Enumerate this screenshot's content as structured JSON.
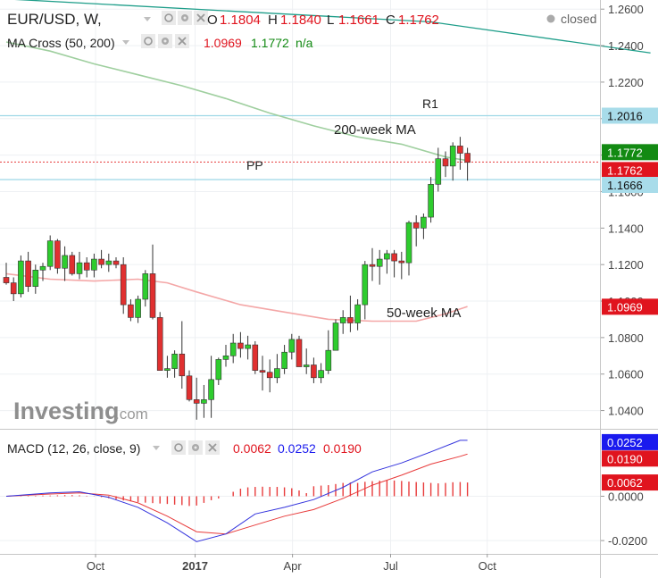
{
  "header": {
    "symbol": "EUR/USD, W,",
    "o_label": "O",
    "o_value": "1.1804",
    "h_label": "H",
    "h_value": "1.1840",
    "l_label": "L",
    "l_value": "1.1661",
    "c_label": "C",
    "c_value": "1.1762",
    "status": "closed"
  },
  "ma_legend": {
    "label": "MA Cross (50, 200)",
    "v1": "1.0969",
    "v2": "1.1772",
    "v3": "n/a"
  },
  "macd_legend": {
    "label": "MACD (12, 26, close, 9)",
    "v1": "0.0062",
    "v2": "0.0252",
    "v3": "0.0190"
  },
  "watermark": {
    "brand": "Investing",
    "suffix": ".com"
  },
  "annotations": {
    "r1": "R1",
    "ma200": "200-week MA",
    "pp": "PP",
    "ma50": "50-week MA"
  },
  "colors": {
    "up": "#2ecc2e",
    "down": "#e03030",
    "ma50": "#f4a7a7",
    "ma200": "#9fcf9f",
    "trend": "#1f9e8a",
    "level": "#9ed8e6",
    "macd": "#3333dd",
    "signal": "#e83b3b",
    "green_badge": "#138a13",
    "red_badge": "#e0141e",
    "blue_badge": "#1a1aee",
    "cyan_badge": "#a8dcea"
  },
  "price_axis": {
    "ticks": [
      "1.2600",
      "1.2400",
      "1.2200",
      "1.2000",
      "1.1800",
      "1.1600",
      "1.1400",
      "1.1200",
      "1.1000",
      "1.0800",
      "1.0600",
      "1.0400"
    ],
    "badges": [
      {
        "value": 1.2016,
        "label": "1.2016",
        "style": "cyan"
      },
      {
        "value": 1.1772,
        "label": "1.1772",
        "style": "green"
      },
      {
        "value": 1.1762,
        "label": "1.1762",
        "style": "red"
      },
      {
        "value": 1.1666,
        "label": "1.1666",
        "style": "cyan"
      },
      {
        "value": 1.0969,
        "label": "1.0969",
        "style": "red"
      }
    ]
  },
  "macd_axis": {
    "ticks": [
      "0.0000",
      "-0.0200"
    ],
    "badges": [
      {
        "value": 0.0252,
        "label": "0.0252",
        "style": "blue"
      },
      {
        "value": 0.019,
        "label": "0.0190",
        "style": "red"
      },
      {
        "value": 0.0062,
        "label": "0.0062",
        "style": "red"
      }
    ]
  },
  "time_axis": {
    "labels": [
      "l",
      "Oct",
      "2017",
      "Apr",
      "Jul",
      "Oct"
    ]
  },
  "chart_data": {
    "type": "candlestick",
    "interval": "weekly",
    "x_start_week": 0,
    "price_ylim": [
      1.03,
      1.265
    ],
    "candles": [
      [
        1.113,
        1.121,
        1.109,
        1.11
      ],
      [
        1.11,
        1.113,
        1.1,
        1.104
      ],
      [
        1.104,
        1.125,
        1.102,
        1.122
      ],
      [
        1.122,
        1.127,
        1.105,
        1.108
      ],
      [
        1.108,
        1.12,
        1.104,
        1.117
      ],
      [
        1.117,
        1.121,
        1.111,
        1.119
      ],
      [
        1.119,
        1.136,
        1.117,
        1.133
      ],
      [
        1.133,
        1.134,
        1.115,
        1.118
      ],
      [
        1.118,
        1.13,
        1.111,
        1.125
      ],
      [
        1.125,
        1.127,
        1.114,
        1.115
      ],
      [
        1.115,
        1.127,
        1.112,
        1.121
      ],
      [
        1.121,
        1.124,
        1.113,
        1.117
      ],
      [
        1.117,
        1.126,
        1.113,
        1.123
      ],
      [
        1.123,
        1.128,
        1.118,
        1.12
      ],
      [
        1.12,
        1.126,
        1.116,
        1.122
      ],
      [
        1.122,
        1.124,
        1.118,
        1.12
      ],
      [
        1.12,
        1.124,
        1.093,
        1.098
      ],
      [
        1.098,
        1.101,
        1.089,
        1.091
      ],
      [
        1.091,
        1.103,
        1.088,
        1.101
      ],
      [
        1.101,
        1.117,
        1.097,
        1.115
      ],
      [
        1.115,
        1.131,
        1.09,
        1.091
      ],
      [
        1.091,
        1.094,
        1.062,
        1.062
      ],
      [
        1.062,
        1.07,
        1.058,
        1.063
      ],
      [
        1.063,
        1.073,
        1.058,
        1.071
      ],
      [
        1.071,
        1.089,
        1.052,
        1.059
      ],
      [
        1.059,
        1.062,
        1.045,
        1.046
      ],
      [
        1.046,
        1.058,
        1.035,
        1.044
      ],
      [
        1.044,
        1.054,
        1.036,
        1.046
      ],
      [
        1.046,
        1.07,
        1.036,
        1.057
      ],
      [
        1.057,
        1.069,
        1.054,
        1.068
      ],
      [
        1.068,
        1.076,
        1.064,
        1.07
      ],
      [
        1.07,
        1.082,
        1.066,
        1.077
      ],
      [
        1.077,
        1.083,
        1.069,
        1.074
      ],
      [
        1.074,
        1.081,
        1.068,
        1.076
      ],
      [
        1.076,
        1.078,
        1.06,
        1.062
      ],
      [
        1.062,
        1.07,
        1.051,
        1.061
      ],
      [
        1.061,
        1.068,
        1.05,
        1.058
      ],
      [
        1.058,
        1.071,
        1.055,
        1.063
      ],
      [
        1.063,
        1.076,
        1.06,
        1.072
      ],
      [
        1.072,
        1.082,
        1.068,
        1.079
      ],
      [
        1.079,
        1.081,
        1.064,
        1.064
      ],
      [
        1.064,
        1.074,
        1.06,
        1.065
      ],
      [
        1.065,
        1.069,
        1.055,
        1.058
      ],
      [
        1.058,
        1.066,
        1.055,
        1.062
      ],
      [
        1.062,
        1.084,
        1.06,
        1.073
      ],
      [
        1.073,
        1.09,
        1.073,
        1.088
      ],
      [
        1.088,
        1.095,
        1.082,
        1.091
      ],
      [
        1.091,
        1.103,
        1.083,
        1.088
      ],
      [
        1.088,
        1.101,
        1.084,
        1.098
      ],
      [
        1.098,
        1.122,
        1.09,
        1.12
      ],
      [
        1.12,
        1.129,
        1.111,
        1.119
      ],
      [
        1.119,
        1.128,
        1.109,
        1.123
      ],
      [
        1.123,
        1.128,
        1.115,
        1.126
      ],
      [
        1.126,
        1.128,
        1.113,
        1.122
      ],
      [
        1.122,
        1.127,
        1.112,
        1.121
      ],
      [
        1.121,
        1.144,
        1.114,
        1.143
      ],
      [
        1.143,
        1.147,
        1.13,
        1.14
      ],
      [
        1.14,
        1.148,
        1.134,
        1.146
      ],
      [
        1.146,
        1.168,
        1.143,
        1.164
      ],
      [
        1.164,
        1.184,
        1.16,
        1.178
      ],
      [
        1.178,
        1.182,
        1.168,
        1.174
      ],
      [
        1.174,
        1.187,
        1.166,
        1.185
      ],
      [
        1.185,
        1.19,
        1.172,
        1.181
      ],
      [
        1.181,
        1.184,
        1.166,
        1.176
      ]
    ],
    "ma50": [
      [
        0,
        1.115
      ],
      [
        6,
        1.112
      ],
      [
        12,
        1.111
      ],
      [
        18,
        1.112
      ],
      [
        22,
        1.11
      ],
      [
        26,
        1.105
      ],
      [
        32,
        1.098
      ],
      [
        38,
        1.094
      ],
      [
        44,
        1.09
      ],
      [
        50,
        1.089
      ],
      [
        56,
        1.089
      ],
      [
        60,
        1.093
      ],
      [
        63,
        1.097
      ]
    ],
    "ma200": [
      [
        0,
        1.242
      ],
      [
        6,
        1.237
      ],
      [
        12,
        1.23
      ],
      [
        18,
        1.224
      ],
      [
        24,
        1.218
      ],
      [
        30,
        1.211
      ],
      [
        36,
        1.203
      ],
      [
        42,
        1.196
      ],
      [
        48,
        1.19
      ],
      [
        54,
        1.186
      ],
      [
        60,
        1.179
      ],
      [
        63,
        1.177
      ]
    ],
    "trendline": [
      [
        -2,
        1.266
      ],
      [
        58,
        1.253
      ],
      [
        88,
        1.236
      ]
    ],
    "levels": [
      {
        "name": "R1",
        "value": 1.2016
      },
      {
        "name": "PP",
        "value": 1.1666
      },
      {
        "name": "Last close",
        "value": 1.1762
      }
    ],
    "macd_ylim": [
      -0.026,
      0.03
    ],
    "macd": [
      [
        0,
        0.0
      ],
      [
        6,
        0.0015
      ],
      [
        10,
        0.002
      ],
      [
        14,
        -0.0005
      ],
      [
        18,
        -0.005
      ],
      [
        22,
        -0.012
      ],
      [
        26,
        -0.0205
      ],
      [
        30,
        -0.017
      ],
      [
        34,
        -0.008
      ],
      [
        38,
        -0.005
      ],
      [
        42,
        -0.0015
      ],
      [
        46,
        0.004
      ],
      [
        50,
        0.011
      ],
      [
        54,
        0.015
      ],
      [
        58,
        0.02
      ],
      [
        62,
        0.0252
      ],
      [
        63,
        0.0252
      ]
    ],
    "signal": [
      [
        0,
        0.0
      ],
      [
        6,
        0.001
      ],
      [
        10,
        0.0015
      ],
      [
        14,
        0.0005
      ],
      [
        18,
        -0.003
      ],
      [
        22,
        -0.009
      ],
      [
        26,
        -0.016
      ],
      [
        30,
        -0.017
      ],
      [
        34,
        -0.013
      ],
      [
        38,
        -0.009
      ],
      [
        42,
        -0.006
      ],
      [
        46,
        -0.001
      ],
      [
        50,
        0.005
      ],
      [
        54,
        0.0095
      ],
      [
        58,
        0.0145
      ],
      [
        62,
        0.018
      ],
      [
        63,
        0.019
      ]
    ],
    "histogram": [
      [
        0,
        0.0
      ],
      [
        1,
        0.0001
      ],
      [
        2,
        0.0002
      ],
      [
        3,
        0.0002
      ],
      [
        4,
        0.0002
      ],
      [
        5,
        0.0003
      ],
      [
        6,
        0.0003
      ],
      [
        7,
        0.0004
      ],
      [
        8,
        0.0005
      ],
      [
        9,
        0.0005
      ],
      [
        10,
        0.0004
      ],
      [
        11,
        0.0002
      ],
      [
        12,
        -0.0001
      ],
      [
        13,
        -0.0004
      ],
      [
        14,
        -0.0009
      ],
      [
        15,
        -0.0014
      ],
      [
        16,
        -0.0019
      ],
      [
        17,
        -0.0023
      ],
      [
        18,
        -0.0026
      ],
      [
        19,
        -0.0029
      ],
      [
        20,
        -0.0031
      ],
      [
        21,
        -0.0033
      ],
      [
        22,
        -0.0035
      ],
      [
        23,
        -0.0038
      ],
      [
        24,
        -0.004
      ],
      [
        25,
        -0.0044
      ],
      [
        26,
        -0.0042
      ],
      [
        27,
        -0.003
      ],
      [
        28,
        -0.0018
      ],
      [
        29,
        -0.001
      ],
      [
        30,
        0.0
      ],
      [
        31,
        0.002
      ],
      [
        32,
        0.0034
      ],
      [
        33,
        0.004
      ],
      [
        34,
        0.0042
      ],
      [
        35,
        0.0043
      ],
      [
        36,
        0.0042
      ],
      [
        37,
        0.0042
      ],
      [
        38,
        0.004
      ],
      [
        39,
        0.0036
      ],
      [
        40,
        0.0026
      ],
      [
        41,
        0.0014
      ],
      [
        42,
        0.0045
      ],
      [
        43,
        0.0048
      ],
      [
        44,
        0.005
      ],
      [
        45,
        0.0055
      ],
      [
        46,
        0.006
      ],
      [
        47,
        0.0062
      ],
      [
        48,
        0.006
      ],
      [
        49,
        0.0065
      ],
      [
        50,
        0.0068
      ],
      [
        51,
        0.007
      ],
      [
        52,
        0.0072
      ],
      [
        53,
        0.0071
      ],
      [
        54,
        0.0069
      ],
      [
        55,
        0.0066
      ],
      [
        56,
        0.0064
      ],
      [
        57,
        0.0062
      ],
      [
        58,
        0.006
      ],
      [
        59,
        0.0058
      ],
      [
        60,
        0.006
      ],
      [
        61,
        0.0063
      ],
      [
        62,
        0.0064
      ],
      [
        63,
        0.0062
      ]
    ],
    "time_labels": [
      {
        "label": "l",
        "week": -1.5
      },
      {
        "label": "Oct",
        "week": 12.2
      },
      {
        "label": "2017",
        "week": 25.8
      },
      {
        "label": "Apr",
        "week": 39.1
      },
      {
        "label": "Jul",
        "week": 52.5
      },
      {
        "label": "Oct",
        "week": 65.7
      }
    ]
  }
}
